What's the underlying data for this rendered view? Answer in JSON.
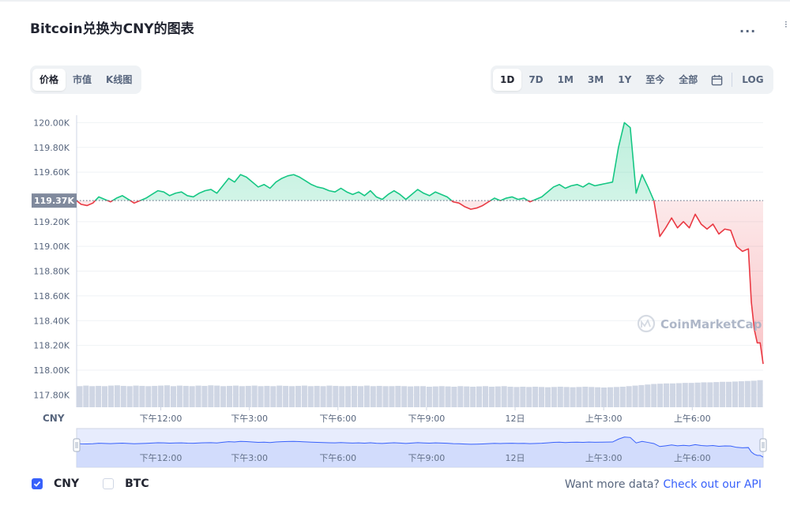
{
  "header": {
    "title": "Bitcoin兑换为CNY的图表",
    "more_label": "..."
  },
  "left_tabs": [
    {
      "label": "价格",
      "active": true
    },
    {
      "label": "市值",
      "active": false
    },
    {
      "label": "K线图",
      "active": false
    }
  ],
  "range_tabs": [
    {
      "label": "1D",
      "active": true
    },
    {
      "label": "7D",
      "active": false
    },
    {
      "label": "1M",
      "active": false
    },
    {
      "label": "3M",
      "active": false
    },
    {
      "label": "1Y",
      "active": false
    },
    {
      "label": "至今",
      "active": false
    },
    {
      "label": "全部",
      "active": false
    }
  ],
  "calendar_icon": "calendar-icon",
  "log_label": "LOG",
  "colors": {
    "up": "#16c784",
    "down": "#ea3943",
    "axis_text": "#58667e",
    "volume": "#cfd6e4",
    "navigator": "#3861fb",
    "reference_bg": "#808a9d"
  },
  "chart_data": {
    "type": "line",
    "currency_label": "CNY",
    "reference_value": 119370,
    "reference_label": "119.37K",
    "ylim": [
      117700,
      120060
    ],
    "y_ticks": [
      {
        "value": 120000,
        "label": "120.00K"
      },
      {
        "value": 119800,
        "label": "119.80K"
      },
      {
        "value": 119600,
        "label": "119.60K"
      },
      {
        "value": 119200,
        "label": "119.20K"
      },
      {
        "value": 119000,
        "label": "119.00K"
      },
      {
        "value": 118800,
        "label": "118.80K"
      },
      {
        "value": 118600,
        "label": "118.60K"
      },
      {
        "value": 118400,
        "label": "118.40K"
      },
      {
        "value": 118200,
        "label": "118.20K"
      },
      {
        "value": 118000,
        "label": "118.00K"
      },
      {
        "value": 117800,
        "label": "117.80K"
      }
    ],
    "x_ticks": [
      {
        "hour": 12,
        "label": "下午12:00"
      },
      {
        "hour": 15,
        "label": "下午3:00"
      },
      {
        "hour": 18,
        "label": "下午6:00"
      },
      {
        "hour": 21,
        "label": "下午9:00"
      },
      {
        "hour": 24,
        "label": "12日"
      },
      {
        "hour": 27,
        "label": "上午3:00"
      },
      {
        "hour": 30,
        "label": "上午6:00"
      }
    ],
    "x_start_hour": 9.15,
    "x_end_hour": 32.4,
    "series": [
      {
        "values": [
          [
            9.15,
            119370
          ],
          [
            9.3,
            119340
          ],
          [
            9.5,
            119330
          ],
          [
            9.7,
            119350
          ],
          [
            9.9,
            119400
          ],
          [
            10.1,
            119380
          ],
          [
            10.3,
            119360
          ],
          [
            10.5,
            119390
          ],
          [
            10.7,
            119410
          ],
          [
            10.9,
            119380
          ],
          [
            11.1,
            119350
          ],
          [
            11.3,
            119370
          ],
          [
            11.5,
            119390
          ],
          [
            11.7,
            119420
          ],
          [
            11.9,
            119450
          ],
          [
            12.1,
            119440
          ],
          [
            12.3,
            119410
          ],
          [
            12.5,
            119430
          ],
          [
            12.7,
            119440
          ],
          [
            12.9,
            119410
          ],
          [
            13.1,
            119400
          ],
          [
            13.3,
            119430
          ],
          [
            13.5,
            119450
          ],
          [
            13.7,
            119460
          ],
          [
            13.9,
            119430
          ],
          [
            14.1,
            119490
          ],
          [
            14.3,
            119550
          ],
          [
            14.5,
            119520
          ],
          [
            14.7,
            119580
          ],
          [
            14.9,
            119560
          ],
          [
            15.1,
            119520
          ],
          [
            15.3,
            119480
          ],
          [
            15.5,
            119500
          ],
          [
            15.7,
            119470
          ],
          [
            15.9,
            119520
          ],
          [
            16.1,
            119550
          ],
          [
            16.3,
            119570
          ],
          [
            16.5,
            119580
          ],
          [
            16.7,
            119560
          ],
          [
            16.9,
            119530
          ],
          [
            17.1,
            119500
          ],
          [
            17.3,
            119480
          ],
          [
            17.5,
            119470
          ],
          [
            17.7,
            119450
          ],
          [
            17.9,
            119440
          ],
          [
            18.1,
            119470
          ],
          [
            18.3,
            119440
          ],
          [
            18.5,
            119420
          ],
          [
            18.7,
            119440
          ],
          [
            18.9,
            119410
          ],
          [
            19.1,
            119450
          ],
          [
            19.3,
            119400
          ],
          [
            19.5,
            119380
          ],
          [
            19.7,
            119420
          ],
          [
            19.9,
            119450
          ],
          [
            20.1,
            119420
          ],
          [
            20.3,
            119380
          ],
          [
            20.5,
            119420
          ],
          [
            20.7,
            119460
          ],
          [
            20.9,
            119430
          ],
          [
            21.1,
            119410
          ],
          [
            21.3,
            119440
          ],
          [
            21.5,
            119420
          ],
          [
            21.7,
            119400
          ],
          [
            21.9,
            119360
          ],
          [
            22.1,
            119350
          ],
          [
            22.3,
            119320
          ],
          [
            22.5,
            119300
          ],
          [
            22.7,
            119310
          ],
          [
            22.9,
            119330
          ],
          [
            23.1,
            119360
          ],
          [
            23.3,
            119390
          ],
          [
            23.5,
            119370
          ],
          [
            23.7,
            119390
          ],
          [
            23.9,
            119400
          ],
          [
            24.1,
            119380
          ],
          [
            24.3,
            119390
          ],
          [
            24.5,
            119360
          ],
          [
            24.7,
            119380
          ],
          [
            24.9,
            119400
          ],
          [
            25.1,
            119440
          ],
          [
            25.3,
            119480
          ],
          [
            25.5,
            119500
          ],
          [
            25.7,
            119470
          ],
          [
            25.9,
            119490
          ],
          [
            26.1,
            119500
          ],
          [
            26.3,
            119480
          ],
          [
            26.5,
            119510
          ],
          [
            26.7,
            119490
          ],
          [
            26.9,
            119500
          ],
          [
            27.1,
            119510
          ],
          [
            27.3,
            119520
          ],
          [
            27.5,
            119800
          ],
          [
            27.7,
            120000
          ],
          [
            27.9,
            119960
          ],
          [
            28.1,
            119430
          ],
          [
            28.3,
            119580
          ],
          [
            28.5,
            119480
          ],
          [
            28.7,
            119370
          ],
          [
            28.9,
            119080
          ],
          [
            29.1,
            119150
          ],
          [
            29.3,
            119230
          ],
          [
            29.5,
            119150
          ],
          [
            29.7,
            119200
          ],
          [
            29.9,
            119150
          ],
          [
            30.1,
            119260
          ],
          [
            30.3,
            119180
          ],
          [
            30.5,
            119140
          ],
          [
            30.7,
            119180
          ],
          [
            30.9,
            119100
          ],
          [
            31.1,
            119140
          ],
          [
            31.3,
            119130
          ],
          [
            31.5,
            119000
          ],
          [
            31.7,
            118960
          ],
          [
            31.9,
            118980
          ],
          [
            32.0,
            118550
          ],
          [
            32.1,
            118330
          ],
          [
            32.2,
            118220
          ],
          [
            32.3,
            118220
          ],
          [
            32.4,
            118050
          ]
        ]
      }
    ],
    "volume_relative": [
      0.6,
      0.62,
      0.6,
      0.61,
      0.6,
      0.62,
      0.63,
      0.61,
      0.6,
      0.62,
      0.61,
      0.6,
      0.61,
      0.62,
      0.63,
      0.6,
      0.62,
      0.61,
      0.6,
      0.62,
      0.61,
      0.63,
      0.62,
      0.6,
      0.61,
      0.62,
      0.6,
      0.61,
      0.62,
      0.6,
      0.61,
      0.6,
      0.62,
      0.61,
      0.6,
      0.61,
      0.62,
      0.6,
      0.61,
      0.6,
      0.62,
      0.61,
      0.6,
      0.6,
      0.61,
      0.6,
      0.62,
      0.6,
      0.61,
      0.6,
      0.6,
      0.61,
      0.6,
      0.59,
      0.6,
      0.6,
      0.58,
      0.59,
      0.6,
      0.59,
      0.58,
      0.6,
      0.59,
      0.58,
      0.59,
      0.6,
      0.58,
      0.59,
      0.6,
      0.58,
      0.57,
      0.58,
      0.57,
      0.58,
      0.57,
      0.56,
      0.57,
      0.58,
      0.57,
      0.56,
      0.57,
      0.58,
      0.57,
      0.56,
      0.55,
      0.56,
      0.57,
      0.58,
      0.6,
      0.62,
      0.64,
      0.66,
      0.68,
      0.69,
      0.7,
      0.7,
      0.71,
      0.72,
      0.72,
      0.73,
      0.74,
      0.74,
      0.75,
      0.76,
      0.76,
      0.77,
      0.78,
      0.79,
      0.8,
      0.82
    ],
    "watermark": "CoinMarketCap"
  },
  "legend": {
    "items": [
      {
        "label": "CNY",
        "checked": true
      },
      {
        "label": "BTC",
        "checked": false
      }
    ]
  },
  "footer": {
    "prefix": "Want more data?",
    "link": "Check out our API"
  }
}
